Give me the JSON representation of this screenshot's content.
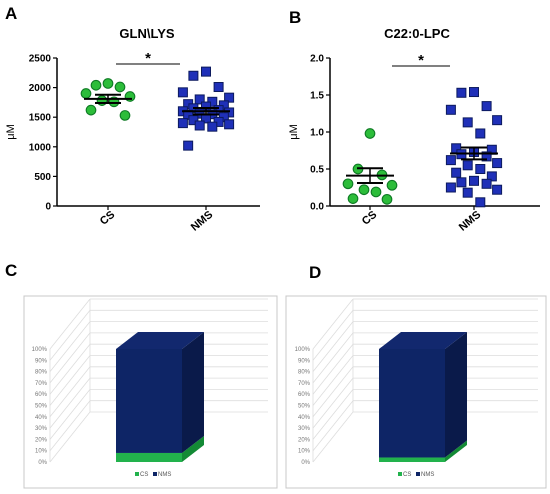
{
  "colors": {
    "cs": "#2cbd3a",
    "nms": "#1f30b8",
    "cs_dark": "#0e7a24",
    "nms_dark": "#0c1a5e",
    "nms_bar": "#0e2566",
    "cs_bar": "#22b24c",
    "panel_border": "#c8c8c8",
    "grid3d": "#dddddd"
  },
  "chart_data": [
    {
      "panel": "A",
      "type": "scatter",
      "title": "GLN\\LYS",
      "ylabel": "μM",
      "categories": [
        "CS",
        "NMS"
      ],
      "ylim": [
        0,
        2500
      ],
      "yticks": [
        "0",
        "500",
        "1000",
        "1500",
        "2000",
        "2500"
      ],
      "series": [
        {
          "values": [
            2070,
            2040,
            2010,
            1900,
            1850,
            1780,
            1760,
            1620,
            1530
          ]
        },
        {
          "values": [
            2270,
            2200,
            2010,
            1920,
            1830,
            1800,
            1760,
            1720,
            1700,
            1680,
            1650,
            1620,
            1600,
            1580,
            1560,
            1550,
            1540,
            1500,
            1480,
            1450,
            1420,
            1400,
            1380,
            1360,
            1340,
            1020
          ]
        }
      ],
      "mean": [
        1810,
        1600
      ],
      "sem": [
        70,
        55
      ],
      "significance": "*"
    },
    {
      "panel": "B",
      "type": "scatter",
      "title": "C22:0-LPC",
      "ylabel": "μM",
      "categories": [
        "CS",
        "NMS"
      ],
      "ylim": [
        0,
        2.0
      ],
      "yticks": [
        "0.0",
        "0.5",
        "1.0",
        "1.5",
        "2.0"
      ],
      "series": [
        {
          "values": [
            0.98,
            0.5,
            0.42,
            0.3,
            0.28,
            0.22,
            0.19,
            0.1,
            0.09
          ]
        },
        {
          "values": [
            1.54,
            1.53,
            1.35,
            1.3,
            1.16,
            1.13,
            0.98,
            0.78,
            0.76,
            0.73,
            0.7,
            0.67,
            0.62,
            0.58,
            0.55,
            0.5,
            0.45,
            0.4,
            0.34,
            0.32,
            0.3,
            0.25,
            0.22,
            0.18,
            0.05
          ]
        }
      ],
      "mean": [
        0.41,
        0.71
      ],
      "sem": [
        0.1,
        0.08
      ],
      "significance": "*"
    },
    {
      "panel": "C",
      "type": "bar",
      "stacked": "100%",
      "yticks": [
        "0%",
        "10%",
        "20%",
        "30%",
        "40%",
        "50%",
        "60%",
        "70%",
        "80%",
        "90%",
        "100%"
      ],
      "series": [
        {
          "name": "CS",
          "values": [
            8
          ]
        },
        {
          "name": "NMS",
          "values": [
            92
          ]
        }
      ],
      "legend": "bottom"
    },
    {
      "panel": "D",
      "type": "bar",
      "stacked": "100%",
      "yticks": [
        "0%",
        "10%",
        "20%",
        "30%",
        "40%",
        "50%",
        "60%",
        "70%",
        "80%",
        "90%",
        "100%"
      ],
      "series": [
        {
          "name": "CS",
          "values": [
            4
          ]
        },
        {
          "name": "NMS",
          "values": [
            96
          ]
        }
      ],
      "legend": "bottom"
    }
  ]
}
